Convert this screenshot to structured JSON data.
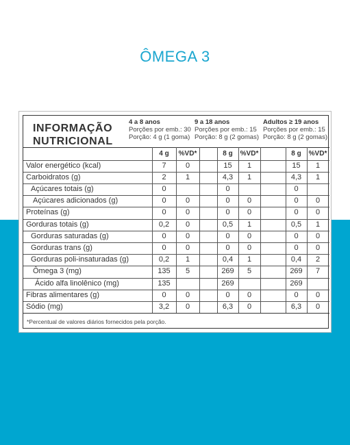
{
  "page_title": "ÔMEGA 3",
  "colors": {
    "accent": "#00a6d0",
    "title": "#1aa6cf"
  },
  "panel": {
    "title_line1": "INFORMAÇÃO",
    "title_line2": "NUTRICIONAL",
    "groups": [
      {
        "header": "4 a 8 anos",
        "servings": "Porções por emb.: 30",
        "portion": "Porção: 4 g (1 goma)",
        "amount_col": "4 g",
        "vd_col": "%VD*"
      },
      {
        "header": "9 a 18 anos",
        "servings": "Porções por emb.: 15",
        "portion": "Porção: 8 g (2 gomas)",
        "amount_col": "8 g",
        "vd_col": "%VD*"
      },
      {
        "header": "Adultos ≥ 19 anos",
        "servings": "Porções por emb.: 15",
        "portion": "Porção: 8 g (2 gomas)",
        "amount_col": "8 g",
        "vd_col": "%VD*"
      }
    ],
    "rows": [
      {
        "label": "Valor energético (kcal)",
        "indent": 0,
        "values": [
          "7",
          "0",
          "15",
          "1",
          "15",
          "1"
        ]
      },
      {
        "label": "Carboidratos (g)",
        "indent": 0,
        "values": [
          "2",
          "1",
          "4,3",
          "1",
          "4,3",
          "1"
        ]
      },
      {
        "label": "Açúcares totais (g)",
        "indent": 1,
        "values": [
          "0",
          "",
          "0",
          "",
          "0",
          ""
        ]
      },
      {
        "label": "Açúcares adicionados (g)",
        "indent": 2,
        "values": [
          "0",
          "0",
          "0",
          "0",
          "0",
          "0"
        ]
      },
      {
        "label": "Proteínas (g)",
        "indent": 0,
        "values": [
          "0",
          "0",
          "0",
          "0",
          "0",
          "0"
        ]
      },
      {
        "label": "Gorduras totais (g)",
        "indent": 0,
        "values": [
          "0,2",
          "0",
          "0,5",
          "1",
          "0,5",
          "1"
        ]
      },
      {
        "label": "Gorduras saturadas (g)",
        "indent": 1,
        "values": [
          "0",
          "0",
          "0",
          "0",
          "0",
          "0"
        ]
      },
      {
        "label": "Gorduras trans (g)",
        "indent": 1,
        "values": [
          "0",
          "0",
          "0",
          "0",
          "0",
          "0"
        ]
      },
      {
        "label": "Gorduras poli-insaturadas (g)",
        "indent": 1,
        "values": [
          "0,2",
          "1",
          "0,4",
          "1",
          "0,4",
          "2"
        ]
      },
      {
        "label": "Ômega 3 (mg)",
        "indent": 2,
        "values": [
          "135",
          "5",
          "269",
          "5",
          "269",
          "7"
        ]
      },
      {
        "label": "Ácido alfa linolênico (mg)",
        "indent": 3,
        "values": [
          "135",
          "",
          "269",
          "",
          "269",
          ""
        ]
      },
      {
        "label": "Fibras alimentares (g)",
        "indent": 0,
        "values": [
          "0",
          "0",
          "0",
          "0",
          "0",
          "0"
        ]
      },
      {
        "label": "Sódio (mg)",
        "indent": 0,
        "values": [
          "3,2",
          "0",
          "6,3",
          "0",
          "6,3",
          "0"
        ]
      }
    ],
    "footnote": "*Percentual de valores diários fornecidos pela porção."
  }
}
